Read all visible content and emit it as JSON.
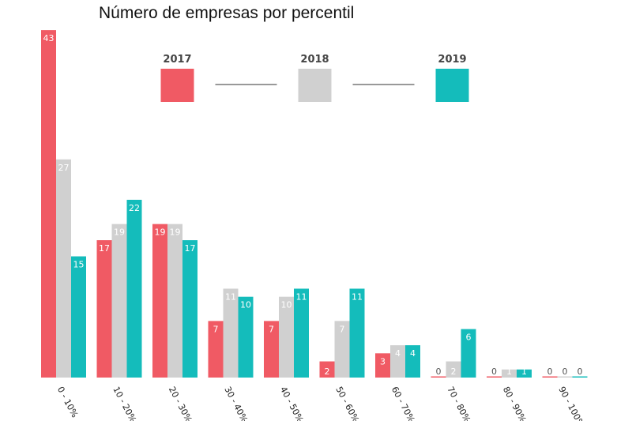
{
  "chart_data": {
    "type": "bar",
    "title": "Número de empresas por percentil",
    "xlabel": "",
    "ylabel": "",
    "ylim": [
      0,
      45
    ],
    "grid": false,
    "legend_position": "top",
    "categories": [
      "0 - 10%",
      "10 - 20%",
      "20 - 30%",
      "30 - 40%",
      "40 - 50%",
      "50 - 60%",
      "60 - 70%",
      "70 - 80%",
      "80 - 90%",
      "90 - 100%"
    ],
    "series": [
      {
        "name": "2017",
        "color": "#F05A64",
        "values": [
          43,
          17,
          19,
          7,
          7,
          2,
          3,
          0,
          0,
          0
        ]
      },
      {
        "name": "2018",
        "color": "#D0D0D0",
        "values": [
          27,
          19,
          19,
          11,
          10,
          7,
          4,
          2,
          1,
          0
        ]
      },
      {
        "name": "2019",
        "color": "#14BCBB",
        "values": [
          15,
          22,
          17,
          10,
          11,
          11,
          4,
          6,
          1,
          0
        ]
      }
    ],
    "legend_connector_color": "#999999"
  }
}
